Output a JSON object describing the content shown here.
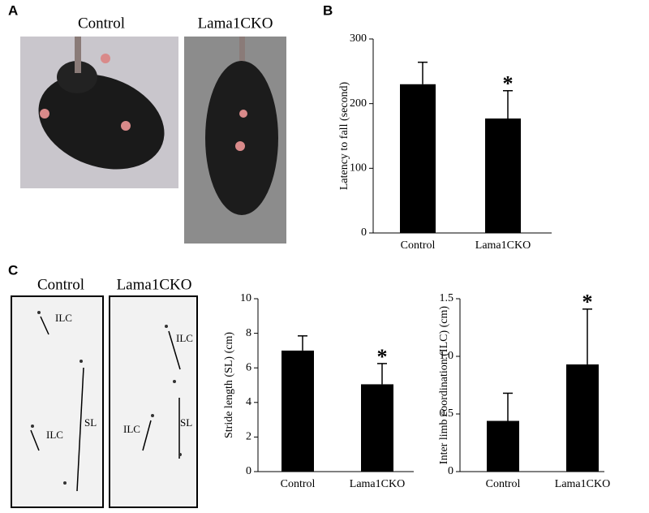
{
  "panels": [
    "A",
    "B",
    "C"
  ],
  "photos": {
    "captions": [
      "Control",
      "Lama1CKO"
    ]
  },
  "footprints": {
    "captions": [
      "Control",
      "Lama1CKO"
    ],
    "labels": [
      "ILC",
      "ILC",
      "SL",
      "ILC",
      "ILC",
      "SL"
    ]
  },
  "chart_data": [
    {
      "type": "bar",
      "ylabel": "Latency to fall  (second)",
      "categories": [
        "Control",
        "Lama1CKO"
      ],
      "values": [
        230,
        177
      ],
      "errors": [
        34,
        43
      ],
      "color": "#000000",
      "ylim": [
        0,
        300
      ],
      "yticks": [
        0,
        100,
        200,
        300
      ],
      "annotations": [
        "*"
      ]
    },
    {
      "type": "bar",
      "ylabel": "Stride length (SL) (cm)",
      "categories": [
        "Control",
        "Lama1CKO"
      ],
      "values": [
        7.0,
        5.05
      ],
      "errors": [
        0.85,
        1.2
      ],
      "color": "#000000",
      "ylim": [
        0,
        10
      ],
      "yticks": [
        0,
        2,
        4,
        6,
        8,
        10
      ],
      "annotations": [
        "*"
      ]
    },
    {
      "type": "bar",
      "ylabel": "Inter limb coordination (ILC) (cm)",
      "categories": [
        "Control",
        "Lama1CKO"
      ],
      "values": [
        0.44,
        0.93
      ],
      "errors": [
        0.24,
        0.48
      ],
      "color": "#000000",
      "ylim": [
        0,
        1.5
      ],
      "yticks": [
        0,
        0.5,
        {
          "value": 1,
          "label": "1.0"
        },
        1.5
      ],
      "annotations": [
        "*"
      ]
    }
  ]
}
